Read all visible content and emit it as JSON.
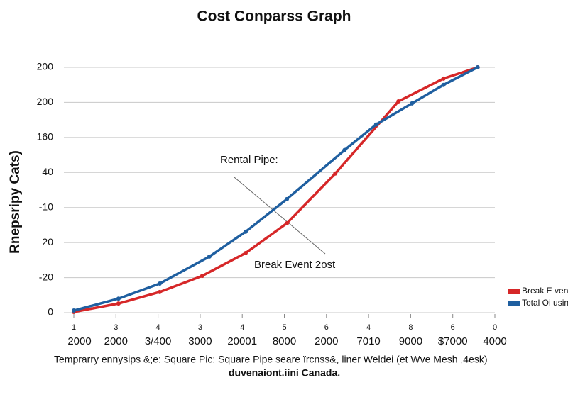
{
  "chart_data": {
    "type": "line",
    "title": "Cost Conparss Graph",
    "y_label": "Rnepsripy Cats)",
    "xlim": [
      0,
      10
    ],
    "xticks": [
      {
        "value": 0,
        "label": "2000"
      },
      {
        "value": 1,
        "label": "2000"
      },
      {
        "value": 2,
        "label": "3/400"
      },
      {
        "value": 3,
        "label": "3000"
      },
      {
        "value": 4,
        "label": "20001"
      },
      {
        "value": 5,
        "label": "8000"
      },
      {
        "value": 6,
        "label": "2000"
      },
      {
        "value": 7,
        "label": "7010"
      },
      {
        "value": 8,
        "label": "9000"
      },
      {
        "value": 9,
        "label": "$7000"
      },
      {
        "value": 10,
        "label": "4000"
      }
    ],
    "x_minor_labels": [
      "1",
      "3",
      "4",
      "3",
      "4",
      "5",
      "6",
      "4",
      "8",
      "6",
      "0"
    ],
    "ylim": [
      0,
      7
    ],
    "yticks": [
      0,
      {
        "value": 1,
        "label": "-20"
      },
      {
        "value": 2,
        "label": "20"
      },
      {
        "value": 3,
        "label": "-10"
      },
      {
        "value": 4,
        "label": "40"
      },
      {
        "value": 5,
        "label": "160"
      },
      {
        "value": 6,
        "label": "200"
      },
      {
        "value": 7,
        "label": "200"
      }
    ],
    "grid": true,
    "series": [
      {
        "name": "Break E ven",
        "color": "#d62728",
        "x": [
          0,
          1.06,
          2.04,
          3.05,
          4.08,
          5.06,
          6.21,
          7.71,
          8.78,
          9.59
        ],
        "values": [
          0.02,
          0.26,
          0.59,
          1.05,
          1.7,
          2.55,
          3.97,
          6.03,
          6.68,
          7.0
        ]
      },
      {
        "name": "Total Oi usiny",
        "color": "#1f5fa0",
        "x": [
          0,
          1.06,
          2.04,
          3.22,
          4.08,
          5.06,
          6.43,
          7.18,
          8.03,
          8.78,
          9.59
        ],
        "values": [
          0.06,
          0.4,
          0.83,
          1.6,
          2.31,
          3.24,
          4.64,
          5.37,
          5.97,
          6.5,
          7.0
        ]
      }
    ],
    "annotations": [
      "Rental Pipe:",
      "Break Event 2ost"
    ],
    "footer": [
      "Temprarry ennysips &;e: Square Pic: Square Pipe seare ïrcnss&, liner Weldei (et Wve Mesh ,4esk)",
      "duvenaiont.iini Canada."
    ]
  }
}
